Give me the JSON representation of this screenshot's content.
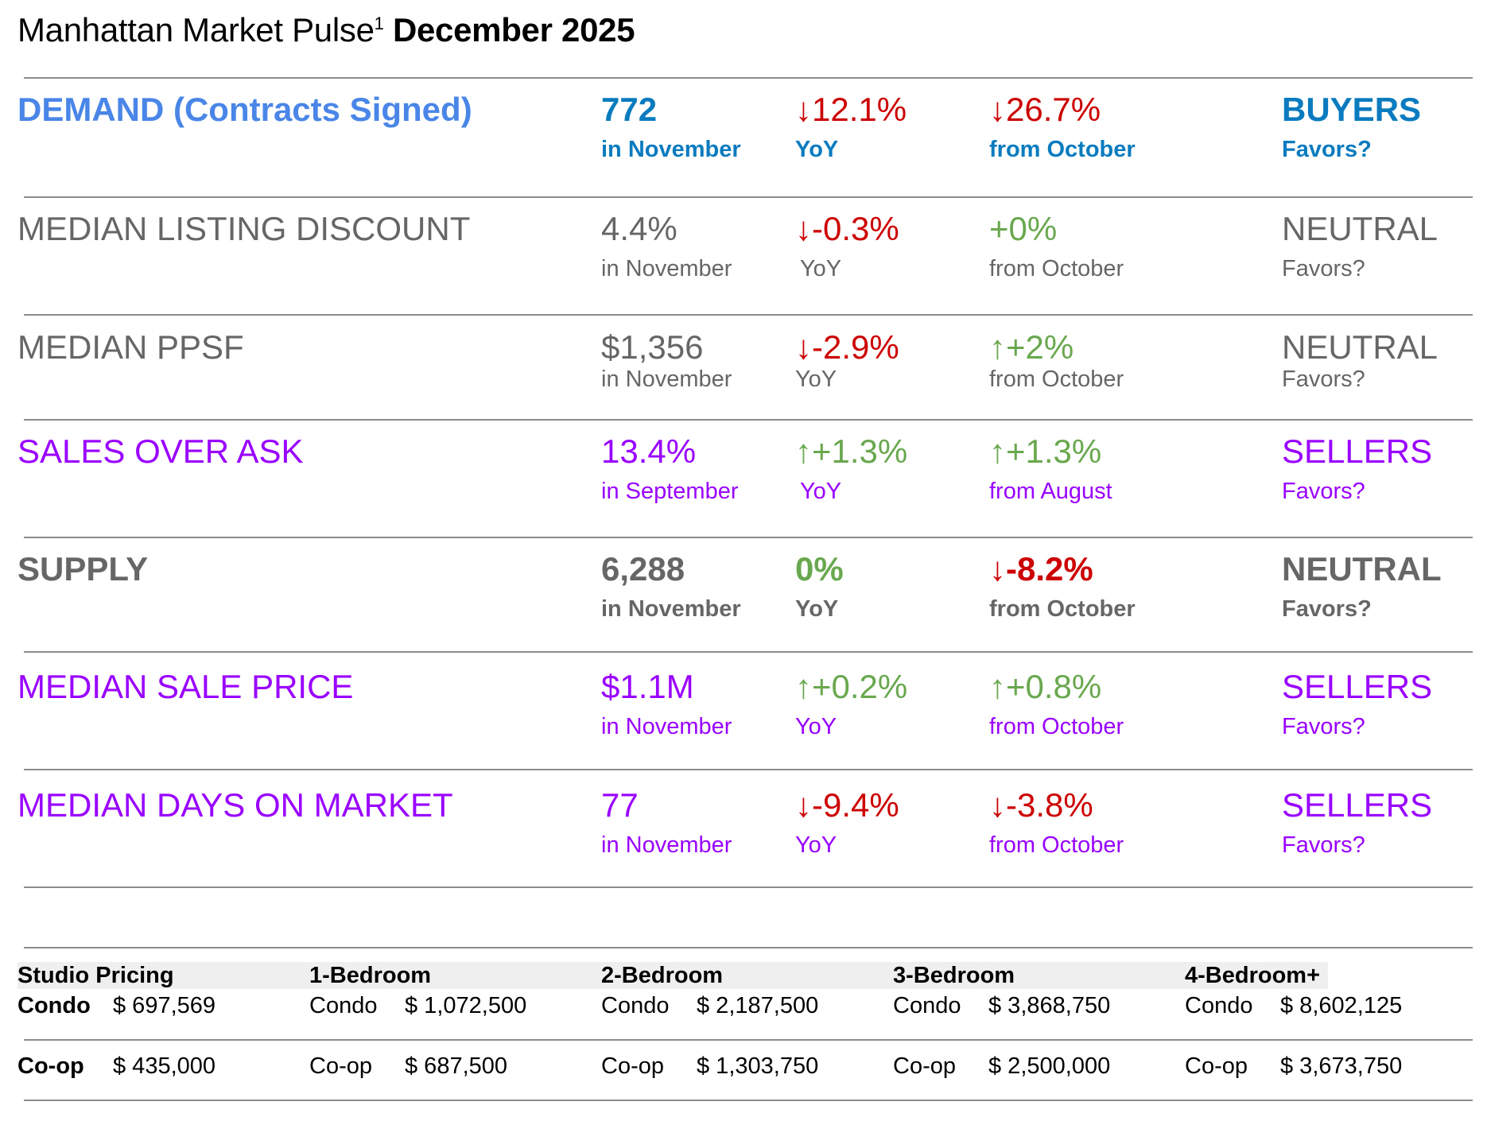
{
  "header": {
    "title": "Manhattan Market Pulse",
    "footnote": "1",
    "date": "December 2025"
  },
  "metrics": [
    {
      "label": "DEMAND (Contracts Signed)",
      "value": "772",
      "period": "in November",
      "yoy": "↓12.1%",
      "yoy_label": "YoY",
      "mom": "↓26.7%",
      "mom_label": "from October",
      "favors": "BUYERS",
      "favors_label": "Favors?"
    },
    {
      "label": "MEDIAN LISTING DISCOUNT",
      "value": "4.4%",
      "period": "in November",
      "yoy": "↓-0.3%",
      "yoy_label": "YoY",
      "mom": "+0%",
      "mom_label": "from October",
      "favors": "NEUTRAL",
      "favors_label": "Favors?"
    },
    {
      "label": "MEDIAN PPSF",
      "value": "$1,356",
      "period": "in November",
      "yoy": "↓-2.9%",
      "yoy_label": "YoY",
      "mom": "↑+2%",
      "mom_label": "from October",
      "favors": "NEUTRAL",
      "favors_label": "Favors?"
    },
    {
      "label": "SALES OVER ASK",
      "value": "13.4%",
      "period": "in September",
      "yoy": "↑+1.3%",
      "yoy_label": "YoY",
      "mom": "↑+1.3%",
      "mom_label": "from August",
      "favors": "SELLERS",
      "favors_label": "Favors?"
    },
    {
      "label": "SUPPLY",
      "value": "6,288",
      "period": "in November",
      "yoy": "0%",
      "yoy_label": "YoY",
      "mom": "↓-8.2%",
      "mom_label": "from October",
      "favors": "NEUTRAL",
      "favors_label": "Favors?"
    },
    {
      "label": "MEDIAN SALE PRICE",
      "value": "$1.1M",
      "period": "in November",
      "yoy": "↑+0.2%",
      "yoy_label": "YoY",
      "mom": "↑+0.8%",
      "mom_label": "from October",
      "favors": "SELLERS",
      "favors_label": "Favors?"
    },
    {
      "label": "MEDIAN DAYS ON MARKET",
      "value": "77",
      "period": "in November",
      "yoy": "↓-9.4%",
      "yoy_label": "YoY",
      "mom": "↓-3.8%",
      "mom_label": "from October",
      "favors": "SELLERS",
      "favors_label": "Favors?"
    }
  ],
  "colors": {
    "demand_label": "#4a86e8",
    "demand": "#0b7bbf",
    "neutral": "#666666",
    "sellers": "#9900ff",
    "down": "#cc0000",
    "up": "#6aa84f"
  },
  "pricing": {
    "headers": [
      "Studio Pricing",
      "1-Bedroom",
      "2-Bedroom",
      "3-Bedroom",
      "4-Bedroom+"
    ],
    "condo_label": "Condo",
    "coop_label": "Co-op",
    "condo": [
      "$ 697,569",
      "$ 1,072,500",
      "$ 2,187,500",
      "$ 3,868,750",
      "$ 8,602,125"
    ],
    "coop": [
      "$ 435,000",
      "$ 687,500",
      "$ 1,303,750",
      "$ 2,500,000",
      "$ 3,673,750"
    ]
  }
}
